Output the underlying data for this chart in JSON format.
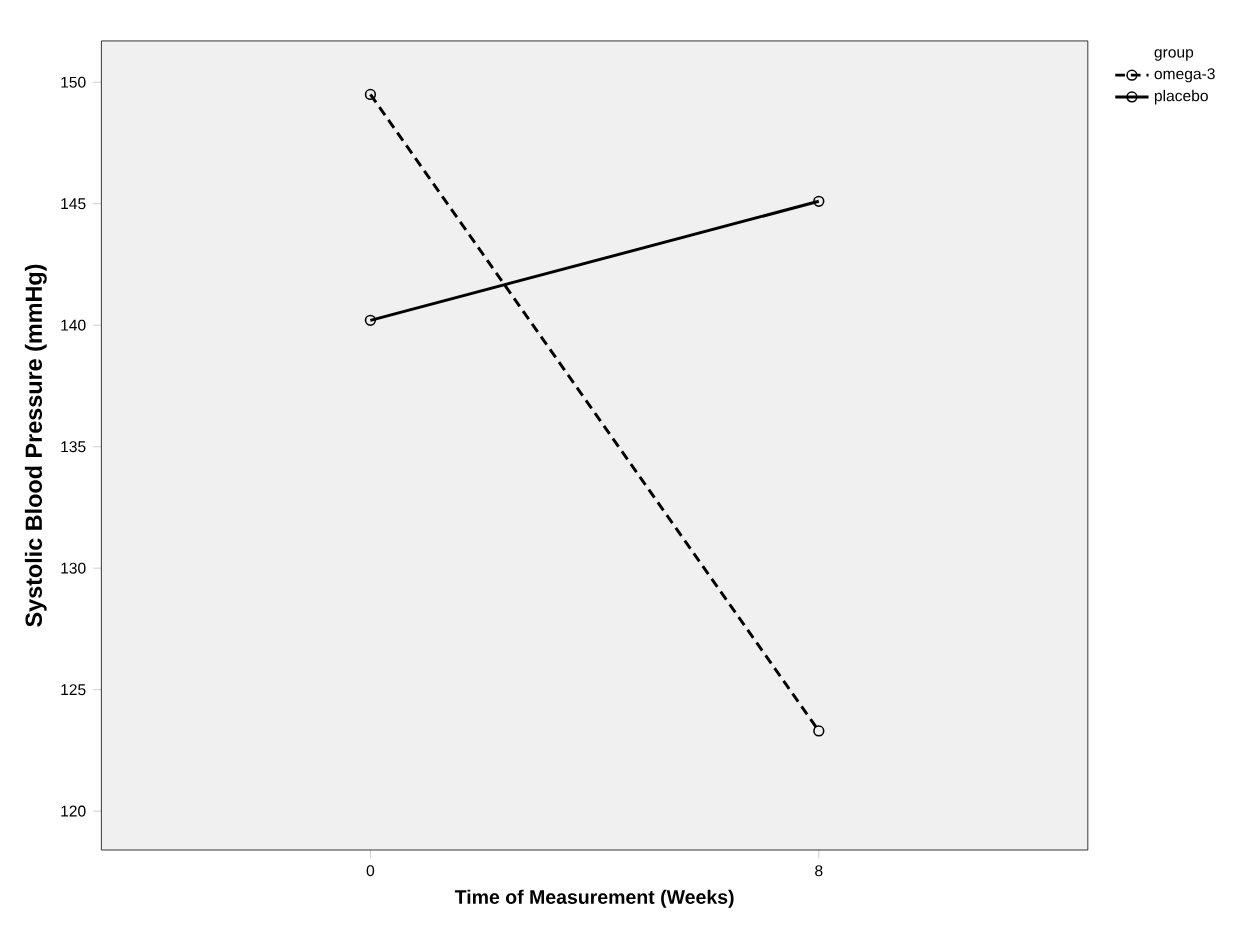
{
  "chart_data": {
    "type": "line",
    "xlabel": "Time of Measurement (Weeks)",
    "ylabel": "Systolic Blood Pressure (mmHg)",
    "legend_title": "group",
    "legend": "top right",
    "marker": "circle",
    "categories": [
      "0",
      "8"
    ],
    "ylim": [
      118.4,
      151.7
    ],
    "yticks": [
      120,
      125,
      130,
      135,
      140,
      145,
      150
    ],
    "grid": false,
    "series": [
      {
        "name": "omega-3",
        "color": "#000000",
        "line_style": "dashed",
        "values": [
          149.5,
          123.3
        ]
      },
      {
        "name": "placebo",
        "color": "#000000",
        "line_style": "solid",
        "values": [
          140.2,
          145.1
        ]
      }
    ]
  }
}
